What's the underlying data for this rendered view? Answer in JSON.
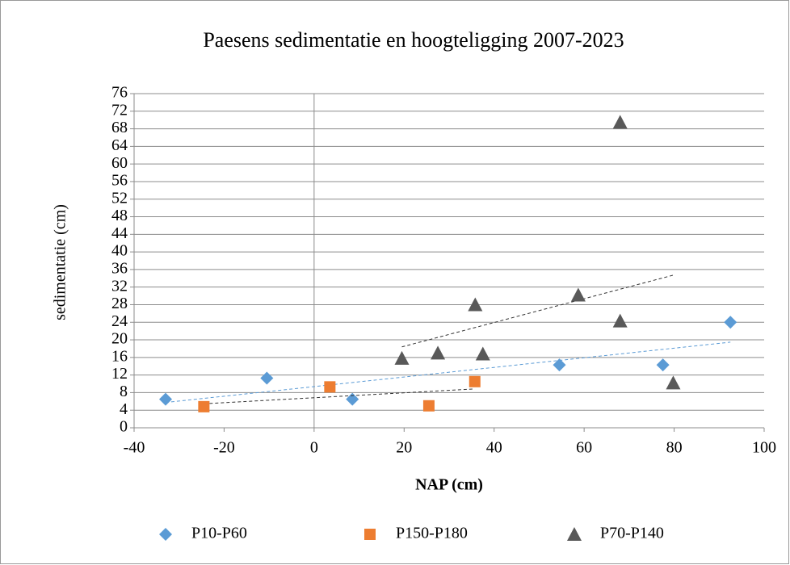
{
  "chart_data": {
    "type": "scatter",
    "title": "Paesens sedimentatie en hoogteligging 2007-2023",
    "x_label": "NAP (cm)",
    "y_label": "sedimentatie (cm)",
    "xlim": [
      -40,
      100
    ],
    "xticks": [
      -40,
      -20,
      0,
      20,
      40,
      60,
      80,
      100
    ],
    "ylim": [
      0,
      76
    ],
    "yticks": [
      0,
      4,
      8,
      12,
      16,
      20,
      24,
      28,
      32,
      36,
      40,
      44,
      48,
      52,
      56,
      60,
      64,
      68,
      72,
      76
    ],
    "grid": true,
    "trendline": true,
    "legend": "bottom",
    "series": [
      {
        "name": "P10-P60",
        "color": "#5b9bd5",
        "marker": "diamond",
        "trend_color": "#5b9bd5",
        "x": [
          -33,
          -10.5,
          8.5,
          54.5,
          77.5,
          92.5
        ],
        "values": [
          6.5,
          11.3,
          6.5,
          14.3,
          14.3,
          24
        ]
      },
      {
        "name": "P150-P180",
        "color": "#ed7d31",
        "marker": "square",
        "trend_color": "#333333",
        "x": [
          -24.5,
          3.5,
          25.5,
          35.7
        ],
        "values": [
          4.8,
          9.3,
          5,
          10.5
        ]
      },
      {
        "name": "P70-P140",
        "color": "#595959",
        "marker": "triangle",
        "trend_color": "#333333",
        "x": [
          19.5,
          27.5,
          35.8,
          37.5,
          58.7,
          68,
          68,
          79.8
        ],
        "values": [
          15.8,
          17,
          28,
          16.8,
          30.2,
          24.3,
          69.5,
          10.2
        ]
      }
    ]
  }
}
